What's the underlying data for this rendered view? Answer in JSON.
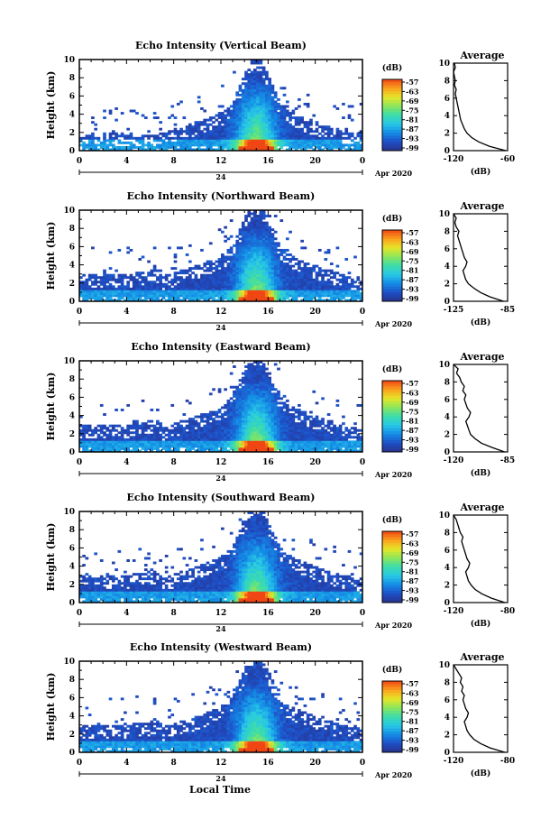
{
  "figure": {
    "xlabel": "Local Time",
    "date_label": "Apr 2020",
    "day_marker": "24",
    "ylabel": "Height (km)",
    "cb_unit": "(dB)",
    "avg_title": "Average",
    "avg_xlabel": "(dB)"
  },
  "chart_data": [
    {
      "type": "heatmap",
      "title": "Echo Intensity (Vertical Beam)",
      "x_ticks": [
        "0",
        "4",
        "8",
        "12",
        "16",
        "20",
        "0"
      ],
      "y_ticks": [
        "0",
        "2",
        "4",
        "6",
        "8",
        "10"
      ],
      "xlim": [
        0,
        24
      ],
      "ylim": [
        0,
        10
      ],
      "colorbar_ticks": [
        "-57",
        "-63",
        "-69",
        "-75",
        "-81",
        "-87",
        "-93",
        "-99"
      ],
      "avg": {
        "x_ticks": [
          "-120",
          "-60"
        ],
        "xlim": [
          -120,
          -60
        ],
        "y": [
          0,
          0.5,
          1,
          1.5,
          2,
          2.5,
          3,
          3.5,
          4,
          4.5,
          5,
          5.5,
          6,
          6.5,
          7,
          7.5,
          8,
          8.5,
          9,
          9.5,
          10
        ],
        "x": [
          -62,
          -80,
          -92,
          -100,
          -105,
          -108,
          -110,
          -112,
          -113,
          -114,
          -115,
          -116,
          -117,
          -118,
          -117,
          -119,
          -118,
          -119,
          -120,
          -118,
          -119
        ]
      }
    },
    {
      "type": "heatmap",
      "title": "Echo Intensity (Northward Beam)",
      "x_ticks": [
        "0",
        "4",
        "8",
        "12",
        "16",
        "20",
        "0"
      ],
      "y_ticks": [
        "0",
        "2",
        "4",
        "6",
        "8",
        "10"
      ],
      "xlim": [
        0,
        24
      ],
      "ylim": [
        0,
        10
      ],
      "colorbar_ticks": [
        "-57",
        "-63",
        "-69",
        "-75",
        "-81",
        "-87",
        "-93",
        "-99"
      ],
      "avg": {
        "x_ticks": [
          "-125",
          "-85"
        ],
        "xlim": [
          -125,
          -85
        ],
        "y": [
          0,
          0.5,
          1,
          1.5,
          2,
          2.5,
          3,
          3.5,
          4,
          4.5,
          5,
          5.5,
          6,
          6.5,
          7,
          7.5,
          8,
          8.5,
          9,
          9.5,
          10
        ],
        "x": [
          -88,
          -98,
          -105,
          -110,
          -114,
          -116,
          -117,
          -118,
          -116,
          -115,
          -117,
          -118,
          -119,
          -120,
          -121,
          -122,
          -121,
          -123,
          -124,
          -123,
          -125
        ]
      }
    },
    {
      "type": "heatmap",
      "title": "Echo Intensity (Eastward Beam)",
      "x_ticks": [
        "0",
        "4",
        "8",
        "12",
        "16",
        "20",
        "0"
      ],
      "y_ticks": [
        "0",
        "2",
        "4",
        "6",
        "8",
        "10"
      ],
      "xlim": [
        0,
        24
      ],
      "ylim": [
        0,
        10
      ],
      "colorbar_ticks": [
        "-57",
        "-63",
        "-69",
        "-75",
        "-81",
        "-87",
        "-93",
        "-99"
      ],
      "avg": {
        "x_ticks": [
          "-120",
          "-85"
        ],
        "xlim": [
          -120,
          -85
        ],
        "y": [
          0,
          0.5,
          1,
          1.5,
          2,
          2.5,
          3,
          3.5,
          4,
          4.5,
          5,
          5.5,
          6,
          6.5,
          7,
          7.5,
          8,
          8.5,
          9,
          9.5,
          10
        ],
        "x": [
          -87,
          -95,
          -102,
          -106,
          -109,
          -110,
          -111,
          -112,
          -110,
          -109,
          -111,
          -112,
          -113,
          -112,
          -114,
          -113,
          -115,
          -116,
          -118,
          -117,
          -120
        ]
      }
    },
    {
      "type": "heatmap",
      "title": "Echo Intensity (Southward Beam)",
      "x_ticks": [
        "0",
        "4",
        "8",
        "12",
        "16",
        "20",
        "0"
      ],
      "y_ticks": [
        "0",
        "2",
        "4",
        "6",
        "8",
        "10"
      ],
      "xlim": [
        0,
        24
      ],
      "ylim": [
        0,
        10
      ],
      "colorbar_ticks": [
        "-57",
        "-63",
        "-69",
        "-75",
        "-81",
        "-87",
        "-93",
        "-99"
      ],
      "avg": {
        "x_ticks": [
          "-120",
          "-80"
        ],
        "xlim": [
          -120,
          -80
        ],
        "y": [
          0,
          0.5,
          1,
          1.5,
          2,
          2.5,
          3,
          3.5,
          4,
          4.5,
          5,
          5.5,
          6,
          6.5,
          7,
          7.5,
          8,
          8.5,
          9,
          9.5,
          10
        ],
        "x": [
          -82,
          -92,
          -99,
          -104,
          -107,
          -109,
          -110,
          -111,
          -109,
          -108,
          -110,
          -111,
          -112,
          -113,
          -114,
          -113,
          -115,
          -116,
          -117,
          -118,
          -120
        ]
      }
    },
    {
      "type": "heatmap",
      "title": "Echo Intensity (Westward Beam)",
      "x_ticks": [
        "0",
        "4",
        "8",
        "12",
        "16",
        "20",
        "0"
      ],
      "y_ticks": [
        "0",
        "2",
        "4",
        "6",
        "8",
        "10"
      ],
      "xlim": [
        0,
        24
      ],
      "ylim": [
        0,
        10
      ],
      "colorbar_ticks": [
        "-57",
        "-63",
        "-69",
        "-75",
        "-81",
        "-87",
        "-93",
        "-99"
      ],
      "avg": {
        "x_ticks": [
          "-120",
          "-80"
        ],
        "xlim": [
          -120,
          -80
        ],
        "y": [
          0,
          0.5,
          1,
          1.5,
          2,
          2.5,
          3,
          3.5,
          4,
          4.5,
          5,
          5.5,
          6,
          6.5,
          7,
          7.5,
          8,
          8.5,
          9,
          9.5,
          10
        ],
        "x": [
          -82,
          -93,
          -100,
          -105,
          -108,
          -110,
          -111,
          -112,
          -110,
          -109,
          -111,
          -112,
          -113,
          -112,
          -114,
          -113,
          -115,
          -114,
          -116,
          -118,
          -120
        ]
      }
    }
  ]
}
